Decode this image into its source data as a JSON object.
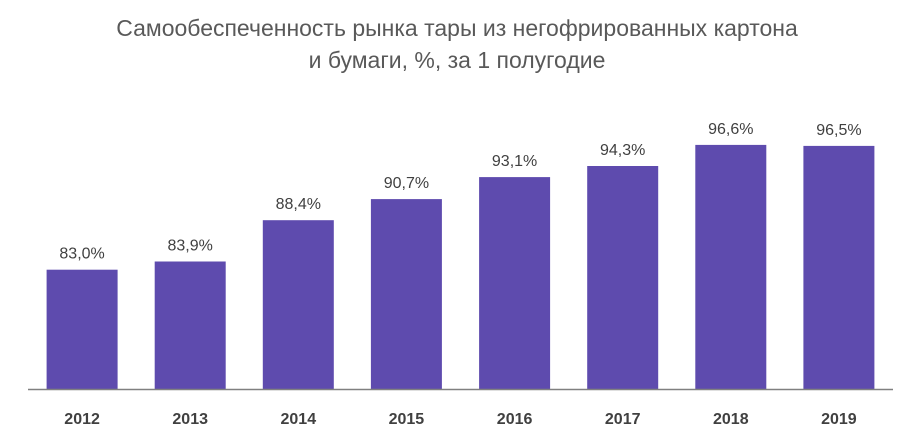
{
  "chart_data": {
    "type": "bar",
    "title_line1": "Самообеспеченность  рынка тары из негофрированных картона",
    "title_line2": "и бумаги, %, за 1 полугодие",
    "categories": [
      "2012",
      "2013",
      "2014",
      "2015",
      "2016",
      "2017",
      "2018",
      "2019"
    ],
    "values": [
      83.0,
      83.9,
      88.4,
      90.7,
      93.1,
      94.3,
      96.6,
      96.5
    ],
    "value_labels": [
      "83,0%",
      "83,9%",
      "88,4%",
      "90,7%",
      "93,1%",
      "94,3%",
      "96,6%",
      "96,5%"
    ],
    "ylim": [
      70,
      100
    ],
    "grid": false,
    "bar_color": "#5E4BAE",
    "label_color": "#404040",
    "axis_color": "#808080"
  }
}
